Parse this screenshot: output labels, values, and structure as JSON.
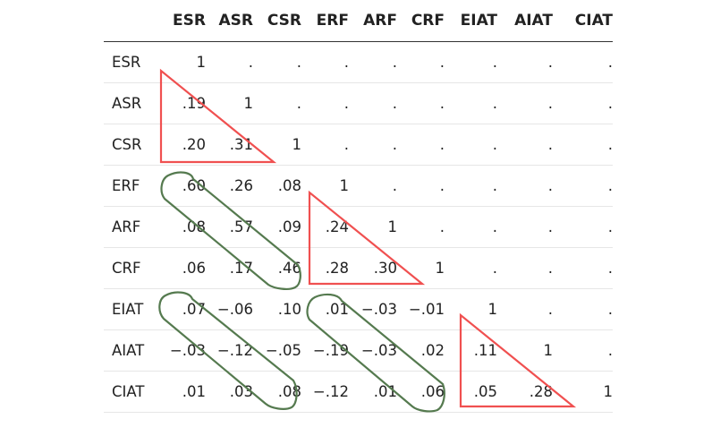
{
  "table": {
    "columns": [
      "ESR",
      "ASR",
      "CSR",
      "ERF",
      "ARF",
      "CRF",
      "EIAT",
      "AIAT",
      "CIAT"
    ],
    "rows": [
      {
        "label": "ESR",
        "cells": [
          "1",
          ".",
          ".",
          ".",
          ".",
          ".",
          ".",
          ".",
          "."
        ]
      },
      {
        "label": "ASR",
        "cells": [
          ".19",
          "1",
          ".",
          ".",
          ".",
          ".",
          ".",
          ".",
          "."
        ]
      },
      {
        "label": "CSR",
        "cells": [
          ".20",
          ".31",
          "1",
          ".",
          ".",
          ".",
          ".",
          ".",
          "."
        ]
      },
      {
        "label": "ERF",
        "cells": [
          ".60",
          ".26",
          ".08",
          "1",
          ".",
          ".",
          ".",
          ".",
          "."
        ]
      },
      {
        "label": "ARF",
        "cells": [
          ".08",
          ".57",
          ".09",
          ".24",
          "1",
          ".",
          ".",
          ".",
          "."
        ]
      },
      {
        "label": "CRF",
        "cells": [
          ".06",
          ".17",
          ".46",
          ".28",
          ".30",
          "1",
          ".",
          ".",
          "."
        ]
      },
      {
        "label": "EIAT",
        "cells": [
          ".07",
          "−.06",
          ".10",
          ".01",
          "−.03",
          "−.01",
          "1",
          ".",
          "."
        ]
      },
      {
        "label": "AIAT",
        "cells": [
          "−.03",
          "−.12",
          "−.05",
          "−.19",
          "−.03",
          ".02",
          ".11",
          "1",
          "."
        ]
      },
      {
        "label": "CIAT",
        "cells": [
          ".01",
          ".03",
          ".08",
          "−.12",
          ".01",
          ".06",
          ".05",
          ".28",
          "1"
        ]
      }
    ]
  },
  "annotations": {
    "triangle_color": "#f05050",
    "loop_color": "#557a4f"
  }
}
